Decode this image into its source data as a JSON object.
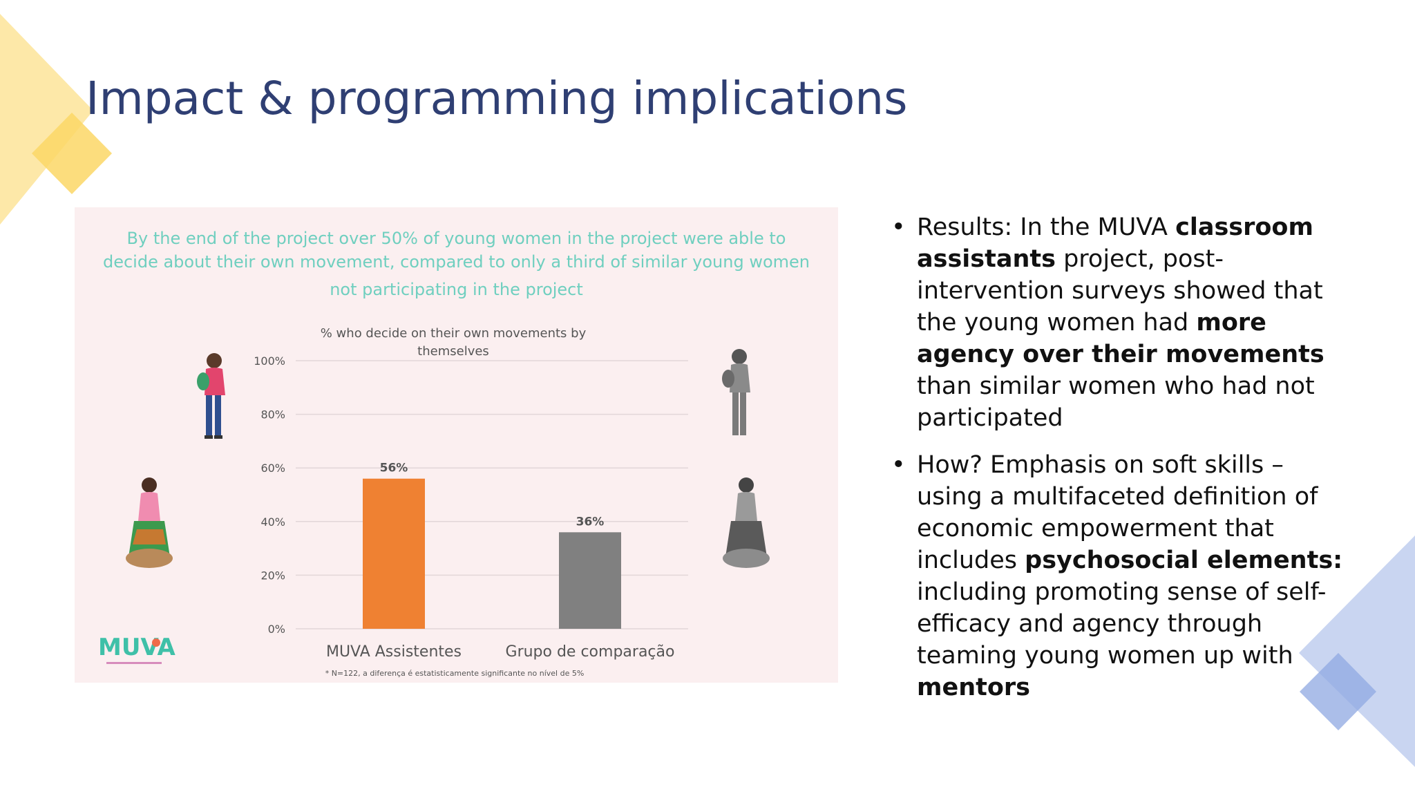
{
  "slide": {
    "title": "Impact & programming implications"
  },
  "chart_panel": {
    "headline_lines": [
      "By the end of the project over 50% of young women in the project were able to",
      "decide about their own movement, compared to only a third of similar young women",
      "not participating in the project"
    ],
    "logo_text": "MUVA",
    "footnote": "* N=122, a diferença é estatisticamente significante no nível de 5%"
  },
  "chart_data": {
    "type": "bar",
    "title": "% who decide on their own movements by themselves",
    "title_lines": [
      "% who decide on their own movements by",
      "themselves"
    ],
    "categories": [
      "MUVA Assistentes",
      "Grupo de comparação"
    ],
    "values": [
      56,
      36
    ],
    "data_labels": [
      "56%",
      "36%"
    ],
    "bar_colors": [
      "#ef8132",
      "#808080"
    ],
    "ylim": [
      0,
      100
    ],
    "yticks": [
      "0%",
      "20%",
      "40%",
      "60%",
      "80%",
      "100%"
    ],
    "ytick_values": [
      0,
      20,
      40,
      60,
      80,
      100
    ],
    "grid": true,
    "legend": "none"
  },
  "bullets": [
    {
      "lines": [
        [
          {
            "t": "Results: In the MUVA "
          },
          {
            "t": "classroom",
            "b": true
          }
        ],
        [
          {
            "t": "assistants",
            "b": true
          },
          {
            "t": " project, post-"
          }
        ],
        [
          {
            "t": "intervention surveys showed that"
          }
        ],
        [
          {
            "t": "the young women had "
          },
          {
            "t": "more",
            "b": true
          }
        ],
        [
          {
            "t": "agency over their movements",
            "b": true
          }
        ],
        [
          {
            "t": "than similar women who had not"
          }
        ],
        [
          {
            "t": "participated"
          }
        ]
      ]
    },
    {
      "lines": [
        [
          {
            "t": "How? Emphasis on soft skills –"
          }
        ],
        [
          {
            "t": "using a multifaceted definition of"
          }
        ],
        [
          {
            "t": "economic empowerment that"
          }
        ],
        [
          {
            "t": "includes "
          },
          {
            "t": "psychosocial elements:",
            "b": true
          }
        ],
        [
          {
            "t": "including promoting sense of self-"
          }
        ],
        [
          {
            "t": "efficacy and agency through"
          }
        ],
        [
          {
            "t": "teaming young women up with"
          }
        ],
        [
          {
            "t": "mentors",
            "b": true
          }
        ]
      ]
    }
  ],
  "bullet_symbol": "•",
  "colors": {
    "title": "#2f3f73",
    "deco_yellow_light": "#fde8a8",
    "deco_yellow": "#fcd766",
    "deco_blue_light": "#c9d5f1",
    "deco_blue": "#8fa8e2",
    "headline_teal": "#6fcfbf",
    "panel_bg": "#fbeff0"
  }
}
